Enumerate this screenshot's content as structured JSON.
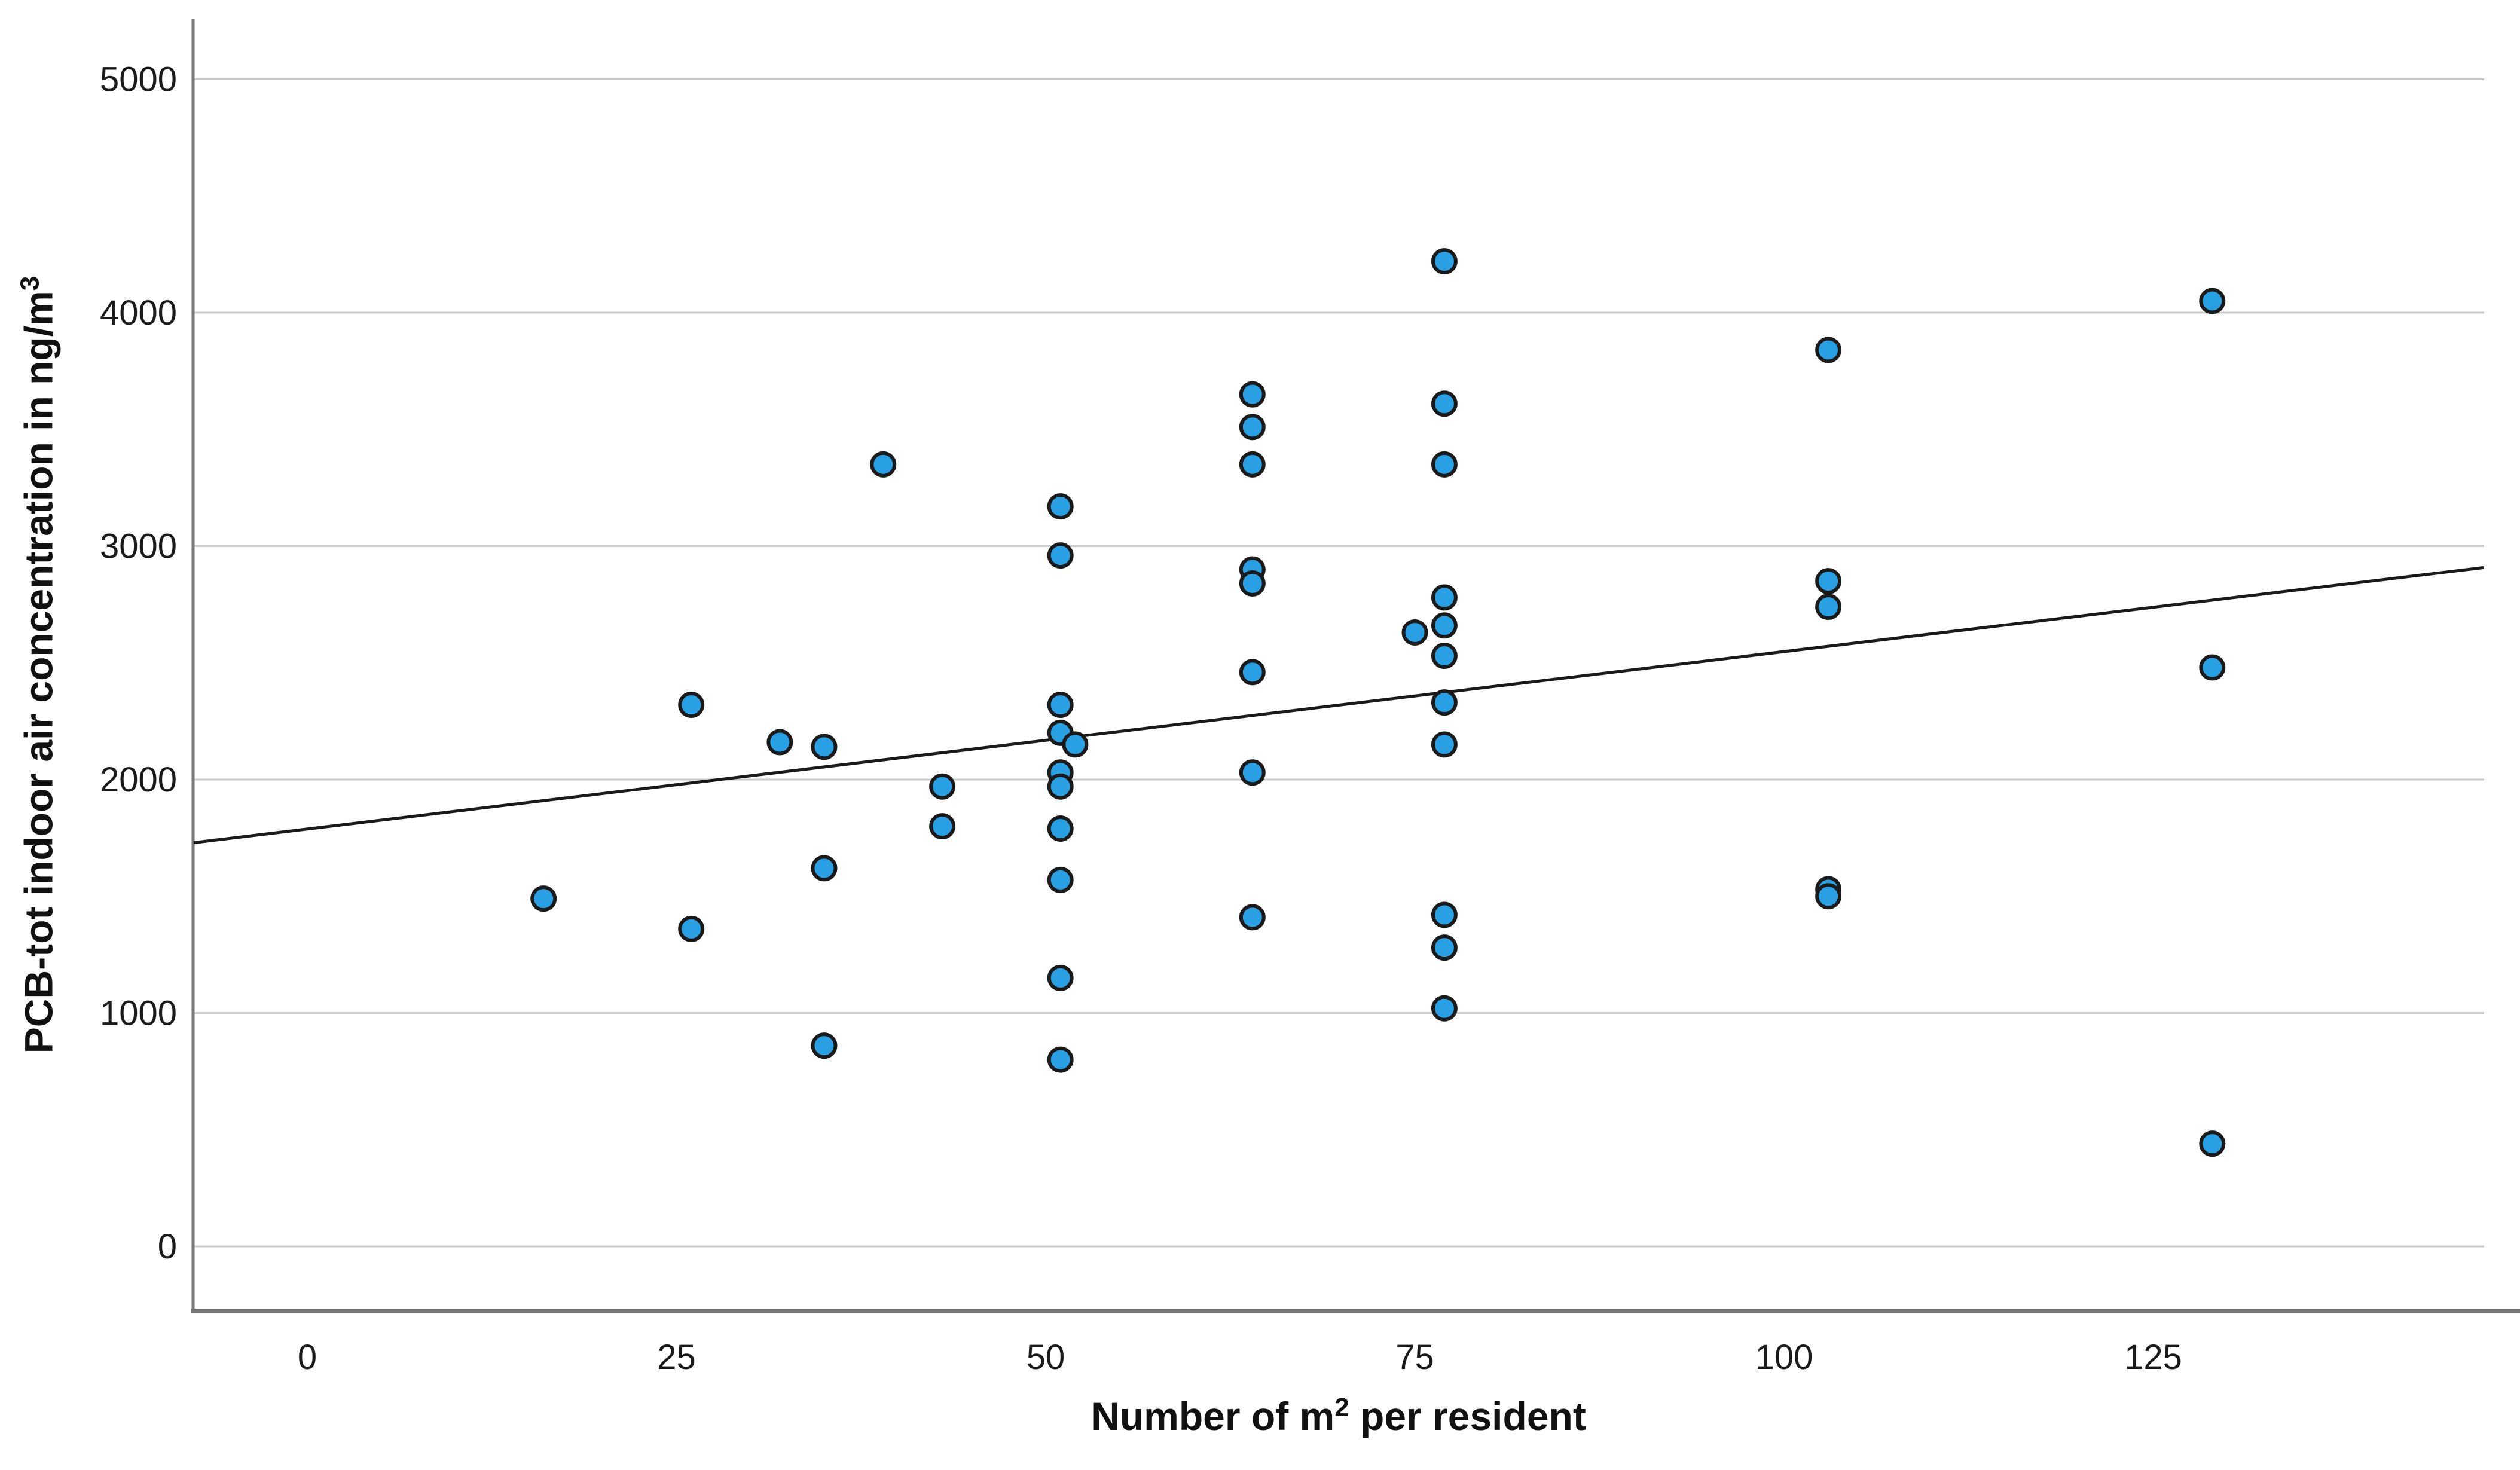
{
  "chart_data": {
    "type": "scatter",
    "title": "",
    "xlabel": "Number of m2 per resident",
    "xlabel_parts": {
      "pre": "Number of m",
      "sup": "2",
      "post": " per resident"
    },
    "ylabel": "PCB-tot indoor air concentration in ng/m3",
    "ylabel_parts": {
      "pre": "PCB-tot indoor air concentration in ng/m",
      "sup": "3"
    },
    "x_ticks": [
      0,
      25,
      50,
      75,
      100,
      125
    ],
    "y_ticks": [
      0,
      1000,
      2000,
      3000,
      4000,
      5000
    ],
    "xlim": [
      -7.7,
      147.4
    ],
    "ylim": [
      -280,
      5260
    ],
    "grid": "horizontal-only",
    "legend": "none",
    "marker": "circle",
    "points": [
      [
        16,
        1490
      ],
      [
        26,
        2320
      ],
      [
        26,
        1360
      ],
      [
        32,
        2160
      ],
      [
        35,
        2140
      ],
      [
        35,
        1620
      ],
      [
        35,
        860
      ],
      [
        39,
        3350
      ],
      [
        43,
        1970
      ],
      [
        43,
        1800
      ],
      [
        51,
        3170
      ],
      [
        51,
        2960
      ],
      [
        51,
        2320
      ],
      [
        51,
        2200
      ],
      [
        52,
        2150
      ],
      [
        51,
        2030
      ],
      [
        51,
        1970
      ],
      [
        51,
        1790
      ],
      [
        51,
        1570
      ],
      [
        51,
        1150
      ],
      [
        51,
        800
      ],
      [
        64,
        3650
      ],
      [
        64,
        3510
      ],
      [
        64,
        3350
      ],
      [
        64,
        2900
      ],
      [
        64,
        2840
      ],
      [
        64,
        2460
      ],
      [
        64,
        2030
      ],
      [
        64,
        1410
      ],
      [
        75,
        2630
      ],
      [
        77,
        4220
      ],
      [
        77,
        3610
      ],
      [
        77,
        3350
      ],
      [
        77,
        2780
      ],
      [
        77,
        2660
      ],
      [
        77,
        2530
      ],
      [
        77,
        2330
      ],
      [
        77,
        2150
      ],
      [
        77,
        1420
      ],
      [
        77,
        1280
      ],
      [
        77,
        1020
      ],
      [
        103,
        3840
      ],
      [
        103,
        2850
      ],
      [
        103,
        2740
      ],
      [
        103,
        1530
      ],
      [
        103,
        1500
      ],
      [
        129,
        4050
      ],
      [
        129,
        2480
      ],
      [
        129,
        440
      ]
    ],
    "trendline": {
      "slope": 7.6,
      "intercept": 1788,
      "x_start": -7.7,
      "x_end": 147.4
    }
  },
  "colors": {
    "point_fill": "#2AA0E4",
    "point_stroke": "#1A1A1A",
    "gridline": "#C9C9C9",
    "axis_line": "#767676",
    "trend_line": "#1A1A1A",
    "tick_text": "#1A1A1A",
    "background": "#FFFFFF"
  }
}
